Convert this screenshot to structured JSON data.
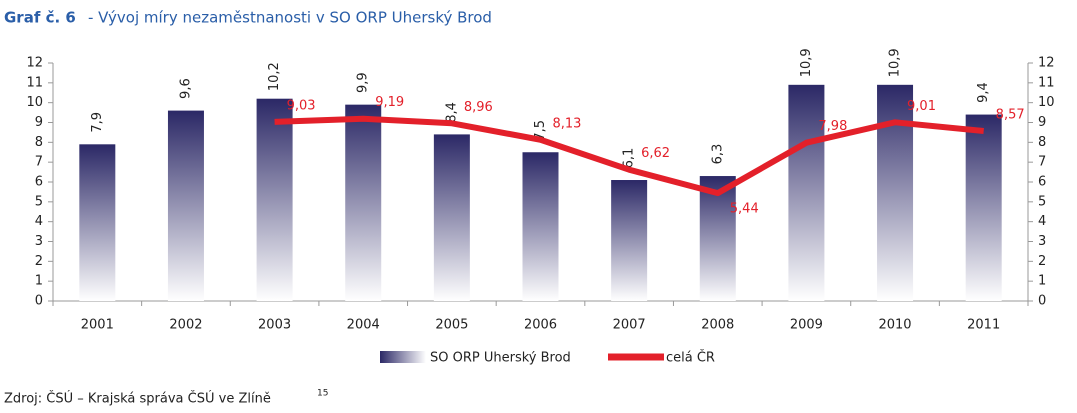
{
  "chart_data": {
    "type": "bar_line",
    "title_label": "Graf č. 6",
    "title": "- Vývoj míry nezaměstnanosti v SO ORP Uherský Brod",
    "source": "Zdroj: ČSÚ – Krajská správa ČSÚ ve Zlíně",
    "source_note": "15",
    "categories": [
      "2001",
      "2002",
      "2003",
      "2004",
      "2005",
      "2006",
      "2007",
      "2008",
      "2009",
      "2010",
      "2011"
    ],
    "series": [
      {
        "name": "SO ORP Uherský Brod",
        "type": "bar",
        "color": "#2b2866",
        "values": [
          7.9,
          9.6,
          10.2,
          9.9,
          8.4,
          7.5,
          6.1,
          6.3,
          10.9,
          10.9,
          9.4
        ],
        "value_labels": [
          "7,9",
          "9,6",
          "10,2",
          "9,9",
          "8,4",
          "7,5",
          "6,1",
          "6,3",
          "10,9",
          "10,9",
          "9,4"
        ]
      },
      {
        "name": "celá ČR",
        "type": "line",
        "color": "#e3202a",
        "values": [
          null,
          null,
          9.03,
          9.19,
          8.96,
          8.13,
          6.62,
          5.44,
          7.98,
          9.01,
          8.57
        ],
        "value_labels": [
          null,
          null,
          "9,03",
          "9,19",
          "8,96",
          "8,13",
          "6,62",
          "5,44",
          "7,98",
          "9,01",
          "8,57"
        ]
      }
    ],
    "ylim": [
      0,
      12
    ],
    "yticks": [
      0,
      1,
      2,
      3,
      4,
      5,
      6,
      7,
      8,
      9,
      10,
      11,
      12
    ],
    "y2lim": [
      0,
      12
    ],
    "y2ticks": [
      0,
      1,
      2,
      3,
      4,
      5,
      6,
      7,
      8,
      9,
      10,
      11,
      12
    ],
    "grid": false,
    "legend": "bottom"
  }
}
